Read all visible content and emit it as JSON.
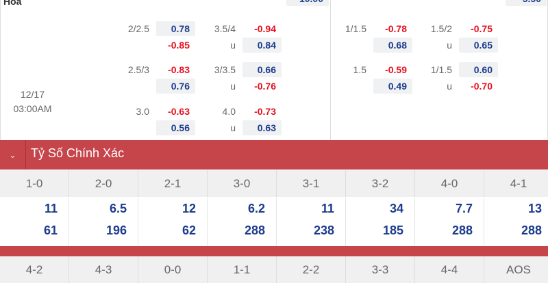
{
  "top": {
    "label": "Hòa",
    "left_partial": "10.00",
    "right_partial": "5.50"
  },
  "match_time": {
    "date": "12/17",
    "time": "03:00AM"
  },
  "left_groups": [
    {
      "a_line": "2/2.5",
      "a1": "0.78",
      "a2": "-0.85",
      "b_line": "3.5/4",
      "b1": "-0.94",
      "b_u": "u",
      "b2": "0.84"
    },
    {
      "a_line": "2.5/3",
      "a1": "-0.83",
      "a2": "0.76",
      "b_line": "3/3.5",
      "b1": "0.66",
      "b_u": "u",
      "b2": "-0.76"
    },
    {
      "a_line": "3.0",
      "a1": "-0.63",
      "a2": "0.56",
      "b_line": "4.0",
      "b1": "-0.73",
      "b_u": "u",
      "b2": "0.63"
    }
  ],
  "right_groups": [
    {
      "a_line": "1/1.5",
      "a1": "-0.78",
      "a2": "0.68",
      "b_line": "1.5/2",
      "b1": "-0.75",
      "b_u": "u",
      "b2": "0.65"
    },
    {
      "a_line": "1.5",
      "a1": "-0.59",
      "a2": "0.49",
      "b_line": "1/1.5",
      "b1": "0.60",
      "b_u": "u",
      "b2": "-0.70"
    }
  ],
  "correct_score": {
    "title": "Tỷ Số Chính Xác",
    "scores": [
      "1-0",
      "2-0",
      "2-1",
      "3-0",
      "3-1",
      "3-2",
      "4-0",
      "4-1"
    ],
    "row1": [
      "11",
      "6.5",
      "12",
      "6.2",
      "11",
      "34",
      "7.7",
      "13"
    ],
    "row2": [
      "61",
      "196",
      "62",
      "288",
      "238",
      "185",
      "288",
      "288"
    ],
    "scores2": [
      "4-2",
      "4-3",
      "0-0",
      "1-1",
      "2-2",
      "3-3",
      "4-4",
      "AOS"
    ]
  },
  "colors": {
    "header": "#c5454b",
    "positive": "#1c3c8c",
    "negative": "#e8101e"
  }
}
